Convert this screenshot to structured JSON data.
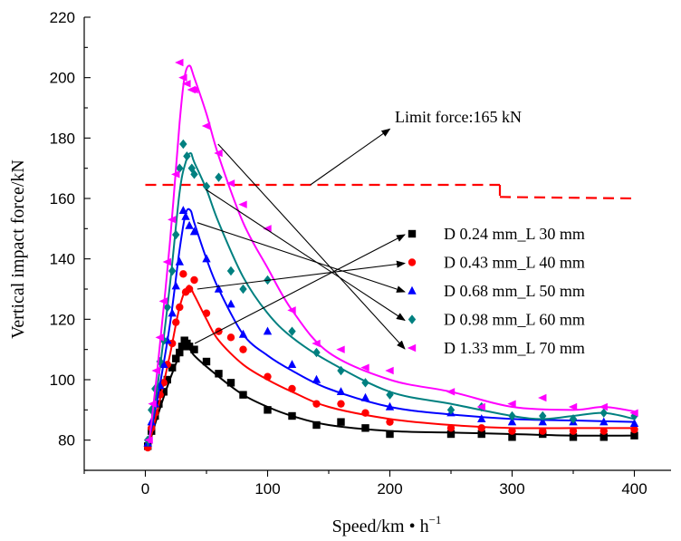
{
  "chart_data": {
    "type": "scatter",
    "xlabel": "Speed/km • h",
    "xlabel_sup": "−1",
    "ylabel": "Vertical impact force/kN",
    "xlim": [
      -50,
      430
    ],
    "ylim": [
      70,
      220
    ],
    "x_ticks": [
      0,
      100,
      200,
      300,
      400
    ],
    "y_ticks": [
      80,
      100,
      120,
      140,
      160,
      180,
      200,
      220
    ],
    "legend_position": "right",
    "limit_line": {
      "label": "Limit force:165 kN",
      "segments": [
        {
          "x": [
            0,
            290
          ],
          "y": [
            164.5,
            164.5
          ]
        },
        {
          "x": [
            290,
            290
          ],
          "y": [
            164.5,
            160.5
          ]
        },
        {
          "x": [
            290,
            400
          ],
          "y": [
            160.5,
            160
          ]
        }
      ],
      "color": "#ff0000"
    },
    "series": [
      {
        "name": "D 0.24 mm_L 30 mm",
        "color": "#000000",
        "marker": "square",
        "points": [
          [
            2,
            78
          ],
          [
            5,
            83
          ],
          [
            8,
            88
          ],
          [
            11,
            92
          ],
          [
            15,
            96
          ],
          [
            18,
            100
          ],
          [
            22,
            104
          ],
          [
            25,
            107
          ],
          [
            28,
            109
          ],
          [
            30,
            111
          ],
          [
            32,
            113
          ],
          [
            34,
            112
          ],
          [
            36,
            111
          ],
          [
            40,
            110
          ],
          [
            50,
            106
          ],
          [
            60,
            102
          ],
          [
            70,
            99
          ],
          [
            80,
            95
          ],
          [
            100,
            90
          ],
          [
            120,
            88
          ],
          [
            140,
            85
          ],
          [
            160,
            86
          ],
          [
            180,
            84
          ],
          [
            200,
            82
          ],
          [
            250,
            82
          ],
          [
            275,
            82
          ],
          [
            300,
            81
          ],
          [
            325,
            82
          ],
          [
            350,
            81
          ],
          [
            375,
            81
          ],
          [
            400,
            81.5
          ]
        ],
        "fit": [
          [
            2,
            77
          ],
          [
            10,
            88
          ],
          [
            20,
            100
          ],
          [
            30,
            110
          ],
          [
            34,
            112
          ],
          [
            40,
            108
          ],
          [
            60,
            101
          ],
          [
            80,
            95
          ],
          [
            100,
            91
          ],
          [
            120,
            88
          ],
          [
            150,
            85
          ],
          [
            200,
            83
          ],
          [
            250,
            82.5
          ],
          [
            300,
            82
          ],
          [
            350,
            81.5
          ],
          [
            400,
            81.5
          ]
        ]
      },
      {
        "name": "D 0.43 mm_L 40 mm",
        "color": "#ff0000",
        "marker": "circle",
        "points": [
          [
            2,
            77.5
          ],
          [
            5,
            84
          ],
          [
            8,
            89
          ],
          [
            12,
            95
          ],
          [
            15,
            99
          ],
          [
            18,
            105
          ],
          [
            22,
            112
          ],
          [
            25,
            119
          ],
          [
            28,
            124
          ],
          [
            31,
            135
          ],
          [
            33,
            129
          ],
          [
            36,
            130
          ],
          [
            40,
            133
          ],
          [
            50,
            122
          ],
          [
            60,
            116
          ],
          [
            70,
            114
          ],
          [
            80,
            110
          ],
          [
            100,
            101
          ],
          [
            120,
            97
          ],
          [
            140,
            92
          ],
          [
            160,
            92
          ],
          [
            180,
            89
          ],
          [
            200,
            86
          ],
          [
            250,
            84
          ],
          [
            275,
            84
          ],
          [
            300,
            83
          ],
          [
            325,
            83
          ],
          [
            350,
            83
          ],
          [
            375,
            83
          ],
          [
            400,
            83.5
          ]
        ],
        "fit": [
          [
            2,
            77
          ],
          [
            10,
            90
          ],
          [
            20,
            108
          ],
          [
            28,
            124
          ],
          [
            35,
            131
          ],
          [
            40,
            128
          ],
          [
            50,
            120
          ],
          [
            60,
            113
          ],
          [
            80,
            105
          ],
          [
            100,
            100
          ],
          [
            120,
            96
          ],
          [
            150,
            91
          ],
          [
            200,
            87
          ],
          [
            250,
            85
          ],
          [
            300,
            84
          ],
          [
            350,
            84
          ],
          [
            400,
            84
          ]
        ]
      },
      {
        "name": "D 0.68 mm_L 50 mm",
        "color": "#0000ff",
        "marker": "triangle",
        "points": [
          [
            2,
            79
          ],
          [
            5,
            86
          ],
          [
            8,
            92
          ],
          [
            12,
            98
          ],
          [
            15,
            105
          ],
          [
            18,
            113
          ],
          [
            22,
            122
          ],
          [
            25,
            131
          ],
          [
            28,
            139
          ],
          [
            31,
            156
          ],
          [
            33,
            154
          ],
          [
            36,
            151
          ],
          [
            40,
            149
          ],
          [
            50,
            140
          ],
          [
            60,
            130
          ],
          [
            70,
            125
          ],
          [
            80,
            115
          ],
          [
            100,
            116
          ],
          [
            120,
            105
          ],
          [
            140,
            100
          ],
          [
            160,
            96
          ],
          [
            180,
            94
          ],
          [
            200,
            91
          ],
          [
            250,
            89
          ],
          [
            275,
            87
          ],
          [
            300,
            86
          ],
          [
            325,
            86
          ],
          [
            350,
            86
          ],
          [
            375,
            86
          ],
          [
            400,
            85.5
          ]
        ],
        "fit": [
          [
            2,
            78
          ],
          [
            10,
            94
          ],
          [
            20,
            118
          ],
          [
            28,
            143
          ],
          [
            33,
            155
          ],
          [
            37,
            156
          ],
          [
            40,
            152
          ],
          [
            50,
            140
          ],
          [
            60,
            130
          ],
          [
            80,
            115
          ],
          [
            100,
            108
          ],
          [
            120,
            103
          ],
          [
            150,
            97
          ],
          [
            200,
            91
          ],
          [
            250,
            88.5
          ],
          [
            300,
            87
          ],
          [
            350,
            86.5
          ],
          [
            400,
            86
          ]
        ]
      },
      {
        "name": "D 0.98 mm_L 60 mm",
        "color": "#008080",
        "marker": "diamond",
        "points": [
          [
            2,
            80
          ],
          [
            5,
            90
          ],
          [
            8,
            97
          ],
          [
            12,
            106
          ],
          [
            15,
            113
          ],
          [
            18,
            124
          ],
          [
            22,
            136
          ],
          [
            25,
            148
          ],
          [
            28,
            170
          ],
          [
            31,
            178
          ],
          [
            34,
            174
          ],
          [
            38,
            170
          ],
          [
            40,
            168
          ],
          [
            50,
            164
          ],
          [
            60,
            167
          ],
          [
            70,
            136
          ],
          [
            80,
            130
          ],
          [
            100,
            133
          ],
          [
            120,
            116
          ],
          [
            140,
            109
          ],
          [
            160,
            103
          ],
          [
            180,
            99
          ],
          [
            200,
            95
          ],
          [
            250,
            90
          ],
          [
            275,
            91
          ],
          [
            300,
            88
          ],
          [
            325,
            88
          ],
          [
            350,
            87
          ],
          [
            375,
            89
          ],
          [
            400,
            88
          ]
        ],
        "fit": [
          [
            2,
            78
          ],
          [
            10,
            98
          ],
          [
            20,
            131
          ],
          [
            28,
            162
          ],
          [
            33,
            172
          ],
          [
            37,
            175
          ],
          [
            40,
            172
          ],
          [
            50,
            163
          ],
          [
            60,
            152
          ],
          [
            80,
            134
          ],
          [
            100,
            122
          ],
          [
            120,
            114
          ],
          [
            150,
            106
          ],
          [
            200,
            96
          ],
          [
            250,
            92
          ],
          [
            300,
            88
          ],
          [
            325,
            87
          ],
          [
            350,
            88
          ],
          [
            375,
            89
          ],
          [
            400,
            87
          ]
        ]
      },
      {
        "name": "D 1.33 mm_L 70 mm",
        "color": "#ff00ff",
        "marker": "left-triangle",
        "points": [
          [
            3,
            80
          ],
          [
            6,
            92
          ],
          [
            9,
            103
          ],
          [
            12,
            114
          ],
          [
            15,
            126
          ],
          [
            18,
            139
          ],
          [
            22,
            153
          ],
          [
            25,
            168
          ],
          [
            28,
            205
          ],
          [
            31,
            200
          ],
          [
            34,
            198
          ],
          [
            38,
            196
          ],
          [
            40,
            196
          ],
          [
            50,
            184
          ],
          [
            60,
            175
          ],
          [
            70,
            165
          ],
          [
            80,
            158
          ],
          [
            100,
            150
          ],
          [
            120,
            123
          ],
          [
            140,
            112
          ],
          [
            160,
            110
          ],
          [
            180,
            104
          ],
          [
            200,
            103
          ],
          [
            250,
            96
          ],
          [
            275,
            91
          ],
          [
            300,
            92
          ],
          [
            325,
            94
          ],
          [
            350,
            91
          ],
          [
            375,
            91
          ],
          [
            400,
            89
          ]
        ],
        "fit": [
          [
            3,
            79
          ],
          [
            10,
            104
          ],
          [
            20,
            145
          ],
          [
            28,
            185
          ],
          [
            32,
            200
          ],
          [
            36,
            204
          ],
          [
            40,
            200
          ],
          [
            50,
            188
          ],
          [
            60,
            174
          ],
          [
            80,
            152
          ],
          [
            100,
            137
          ],
          [
            120,
            123
          ],
          [
            150,
            109
          ],
          [
            200,
            100
          ],
          [
            250,
            96
          ],
          [
            300,
            91
          ],
          [
            350,
            90
          ],
          [
            375,
            91
          ],
          [
            400,
            89.5
          ]
        ]
      }
    ]
  }
}
